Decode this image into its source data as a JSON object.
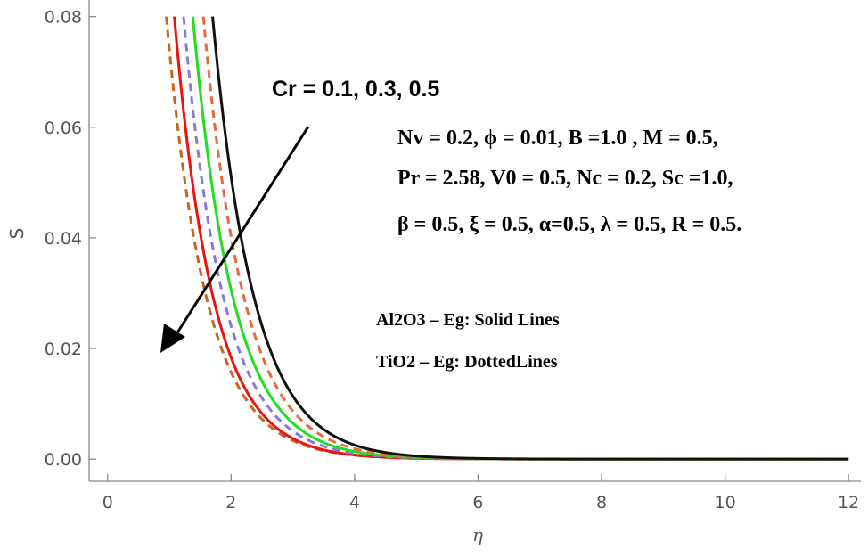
{
  "chart_data": {
    "type": "line",
    "title": "",
    "xlabel": "η",
    "ylabel": "S",
    "xlim": [
      -0.3,
      12.2
    ],
    "ylim": [
      -0.004,
      0.083
    ],
    "xticks": [
      0,
      2,
      4,
      6,
      8,
      10,
      12
    ],
    "xtick_labels": [
      "0",
      "2",
      "4",
      "6",
      "8",
      "10",
      "12"
    ],
    "yticks": [
      0.0,
      0.02,
      0.04,
      0.06,
      0.08
    ],
    "ytick_labels": [
      "0.00",
      "0.02",
      "0.04",
      "0.06",
      "0.08"
    ],
    "curve_model": "S(η) = 0.08 · exp(-k · (η - η0)), η ≥ η0",
    "series": [
      {
        "name": "TiO2-Eg Cr=0.5",
        "color": "#c8641e",
        "dash": "dashed",
        "eta0": 0.95,
        "k": 1.55
      },
      {
        "name": "Al2O3-Eg Cr=0.5",
        "color": "#ee1111",
        "dash": "solid",
        "eta0": 1.08,
        "k": 1.6
      },
      {
        "name": "TiO2-Eg Cr=0.3",
        "color": "#8a78d8",
        "dash": "dashed",
        "eta0": 1.23,
        "k": 1.56
      },
      {
        "name": "Al2O3-Eg Cr=0.3",
        "color": "#22dd22",
        "dash": "solid",
        "eta0": 1.38,
        "k": 1.55
      },
      {
        "name": "TiO2-Eg Cr=0.1",
        "color": "#e86a3a",
        "dash": "dashed",
        "eta0": 1.55,
        "k": 1.53
      },
      {
        "name": "Al2O3-Eg Cr=0.1",
        "color": "#111111",
        "dash": "solid",
        "eta0": 1.7,
        "k": 1.5
      }
    ],
    "annotations": {
      "cr_label": "Cr = 0.1, 0.3, 0.5",
      "params_line1": "Nv = 0.2, ϕ = 0.01, B =1.0 , M = 0.5,",
      "params_line2": "Pr = 2.58, V0 = 0.5, Nc = 0.2, Sc =1.0,",
      "params_line3": "β = 0.5, ξ = 0.5,  α=0.5, λ = 0.5, R = 0.5.",
      "legend_solid": "Al2O3 – Eg: Solid Lines",
      "legend_dotted": "TiO2 – Eg: DottedLines",
      "arrow_direction": "increasing Cr"
    }
  }
}
